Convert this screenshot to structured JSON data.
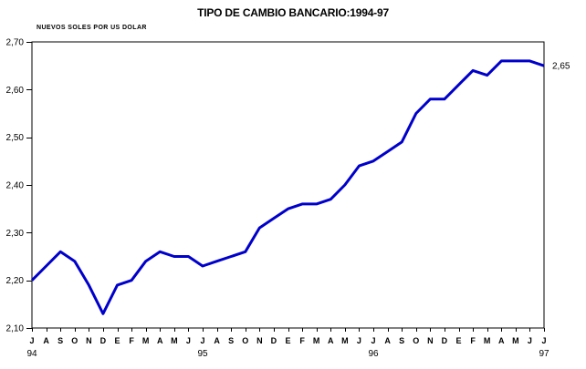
{
  "title": "TIPO DE CAMBIO BANCARIO:1994-97",
  "unit_label": "NUEVOS SOLES POR US DOLAR",
  "colors": {
    "line": "#0000cc",
    "axis": "#000000",
    "background": "#ffffff",
    "text": "#000000"
  },
  "chart_data": {
    "type": "line",
    "title": "TIPO DE CAMBIO BANCARIO:1994-97",
    "ylabel": "NUEVOS SOLES POR US DOLAR",
    "xlabel": "",
    "ylim": [
      2.1,
      2.7
    ],
    "ytick_values": [
      2.1,
      2.2,
      2.3,
      2.4,
      2.5,
      2.6,
      2.7
    ],
    "ytick_labels": [
      "2,10",
      "2,20",
      "2,30",
      "2,40",
      "2,50",
      "2,60",
      "2,70"
    ],
    "categories": [
      "J",
      "A",
      "S",
      "O",
      "N",
      "D",
      "E",
      "F",
      "M",
      "A",
      "M",
      "J",
      "J",
      "A",
      "S",
      "O",
      "N",
      "D",
      "E",
      "F",
      "M",
      "A",
      "M",
      "J",
      "J",
      "A",
      "S",
      "O",
      "N",
      "D",
      "E",
      "F",
      "M",
      "A",
      "M",
      "J",
      "J"
    ],
    "year_labels": [
      {
        "index": 0,
        "label": "94"
      },
      {
        "index": 12,
        "label": "95"
      },
      {
        "index": 24,
        "label": "96"
      },
      {
        "index": 36,
        "label": "97"
      }
    ],
    "series": [
      {
        "name": "Tipo de cambio bancario (nuevos soles por US dolar)",
        "values": [
          2.2,
          2.23,
          2.26,
          2.24,
          2.19,
          2.13,
          2.19,
          2.2,
          2.24,
          2.26,
          2.25,
          2.25,
          2.23,
          2.24,
          2.25,
          2.26,
          2.31,
          2.33,
          2.35,
          2.36,
          2.36,
          2.37,
          2.4,
          2.44,
          2.45,
          2.47,
          2.49,
          2.55,
          2.58,
          2.58,
          2.61,
          2.64,
          2.63,
          2.66,
          2.66,
          2.66,
          2.65
        ]
      }
    ],
    "grid": false,
    "legend": false,
    "annotation": {
      "text": "2,65",
      "point_index": 36
    }
  }
}
